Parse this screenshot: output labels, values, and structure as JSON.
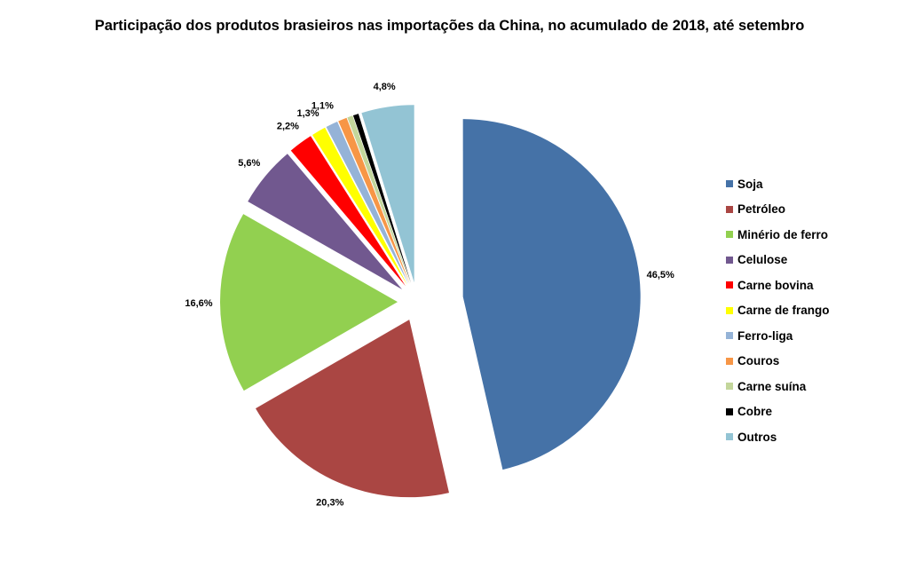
{
  "chart_data": {
    "type": "pie",
    "title": "Participação dos produtos brasieiros nas importações da China, no acumulado de 2018, até setembro",
    "slices": [
      {
        "name": "Soja",
        "value": 46.5,
        "label": "46,5%",
        "color": "#4572A7"
      },
      {
        "name": "Petróleo",
        "value": 20.3,
        "label": "20,3%",
        "color": "#AA4643"
      },
      {
        "name": "Minério de ferro",
        "value": 16.6,
        "label": "16,6%",
        "color": "#92D050"
      },
      {
        "name": "Celulose",
        "value": 5.6,
        "label": "5,6%",
        "color": "#71588F"
      },
      {
        "name": "Carne bovina",
        "value": 2.2,
        "label": "2,2%",
        "color": "#FF0000"
      },
      {
        "name": "Carne de frango",
        "value": 1.3,
        "label": "1,3%",
        "color": "#FFFF00"
      },
      {
        "name": "Ferro-liga",
        "value": 1.1,
        "label": "1,1%",
        "color": "#95B3D7"
      },
      {
        "name": "Couros",
        "value": 0.8,
        "label": "",
        "color": "#F79646"
      },
      {
        "name": "Carne suína",
        "value": 0.5,
        "label": "",
        "color": "#C3D69B"
      },
      {
        "name": "Cobre",
        "value": 0.5,
        "label": "",
        "color": "#000000"
      },
      {
        "name": "Outros",
        "value": 4.8,
        "label": "4,8%",
        "color": "#93C4D4"
      }
    ],
    "legend": {
      "position": "right"
    }
  }
}
